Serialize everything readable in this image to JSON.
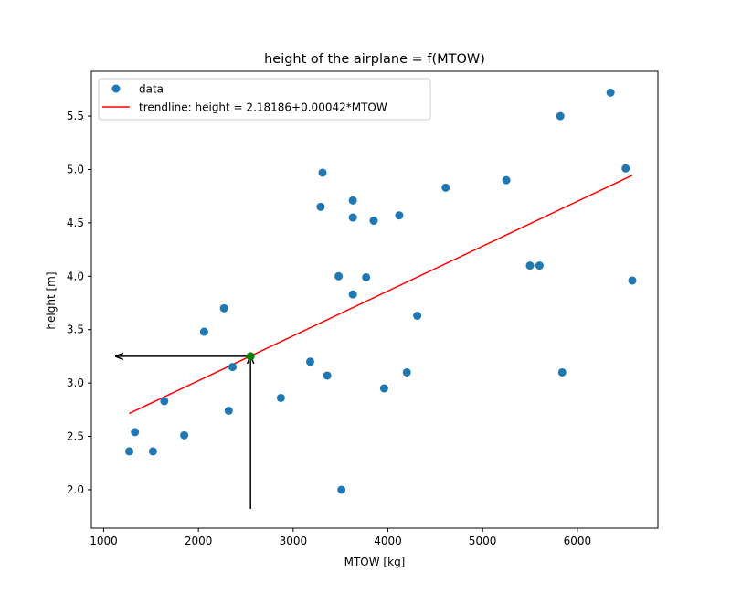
{
  "chart_data": {
    "type": "scatter",
    "title": "height of the airplane = f(MTOW)",
    "xlabel": "MTOW [kg]",
    "ylabel": "height [m]",
    "xlim": [
      870,
      6850
    ],
    "ylim": [
      1.64,
      5.92
    ],
    "xticks": [
      1000,
      2000,
      3000,
      4000,
      5000,
      6000
    ],
    "yticks": [
      2.0,
      2.5,
      3.0,
      3.5,
      4.0,
      4.5,
      5.0,
      5.5
    ],
    "xtick_labels": [
      "1000",
      "2000",
      "3000",
      "4000",
      "5000",
      "6000"
    ],
    "ytick_labels": [
      "2.0",
      "2.5",
      "3.0",
      "3.5",
      "4.0",
      "4.5",
      "5.0",
      "5.5"
    ],
    "grid": false,
    "legend_position": "top-left",
    "series": [
      {
        "name": "data",
        "kind": "scatter",
        "color": "#1f77b4",
        "points": [
          [
            1270,
            2.36
          ],
          [
            1330,
            2.54
          ],
          [
            1520,
            2.36
          ],
          [
            1640,
            2.83
          ],
          [
            1850,
            2.51
          ],
          [
            2060,
            3.48
          ],
          [
            2270,
            3.7
          ],
          [
            2320,
            2.74
          ],
          [
            2360,
            3.15
          ],
          [
            2870,
            2.86
          ],
          [
            3180,
            3.2
          ],
          [
            3290,
            4.65
          ],
          [
            3310,
            4.97
          ],
          [
            3360,
            3.07
          ],
          [
            3480,
            4.0
          ],
          [
            3510,
            2.0
          ],
          [
            3630,
            4.71
          ],
          [
            3630,
            4.55
          ],
          [
            3630,
            3.83
          ],
          [
            3770,
            3.99
          ],
          [
            3850,
            4.52
          ],
          [
            3960,
            2.95
          ],
          [
            4120,
            4.57
          ],
          [
            4200,
            3.1
          ],
          [
            4310,
            3.63
          ],
          [
            4610,
            4.83
          ],
          [
            5250,
            4.9
          ],
          [
            5500,
            4.1
          ],
          [
            5600,
            4.1
          ],
          [
            5820,
            5.5
          ],
          [
            5840,
            3.1
          ],
          [
            6350,
            5.72
          ],
          [
            6510,
            5.01
          ],
          [
            6580,
            3.96
          ]
        ]
      },
      {
        "name": "trendline: height = 2.18186+0.00042*MTOW",
        "kind": "line",
        "color": "#ff0000",
        "intercept": 2.18186,
        "slope": 0.00042,
        "x_range": [
          1270,
          6580
        ]
      }
    ],
    "annotations": [
      {
        "kind": "marker",
        "color": "#008000",
        "point": [
          2550,
          3.25
        ]
      },
      {
        "kind": "arrow",
        "color": "#000000",
        "from": [
          2550,
          1.82
        ],
        "to": [
          2550,
          3.25
        ]
      },
      {
        "kind": "arrow",
        "color": "#000000",
        "from": [
          2550,
          3.25
        ],
        "to": [
          1130,
          3.25
        ]
      }
    ]
  }
}
